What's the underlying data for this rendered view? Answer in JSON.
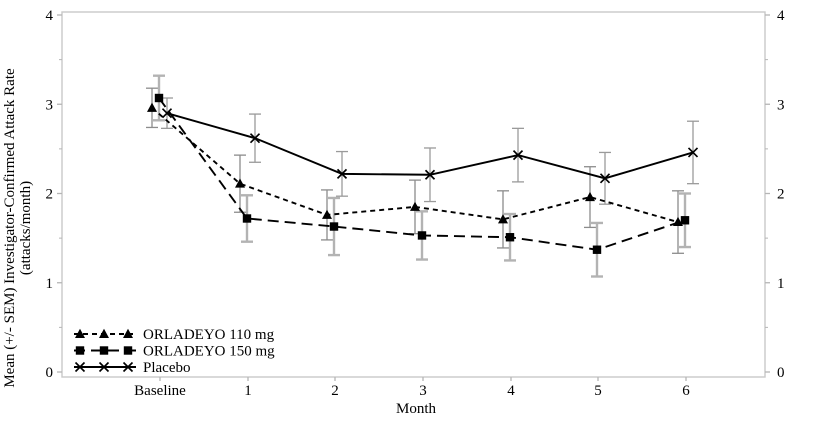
{
  "figure": {
    "background": "#ffffff",
    "frame_color": "#c9c9c9",
    "tick_color": "#b5b5b5",
    "text_color": "#000000"
  },
  "chart_data": {
    "type": "line",
    "title": "",
    "xlabel": "Month",
    "ylabel": "Mean (+/- SEM) Investigator-Confirmed Attack Rate",
    "ylabel_line2": "(attacks/month)",
    "categories": [
      "Baseline",
      "1",
      "2",
      "3",
      "4",
      "5",
      "6"
    ],
    "ylim": [
      0,
      4
    ],
    "yticks": [
      0,
      1,
      2,
      3,
      4
    ],
    "y_minor_step": 0.5,
    "grid": false,
    "legend_position": "bottom-left-inside",
    "series": [
      {
        "name": "ORLADEYO 110 mg",
        "marker": "triangle",
        "line_style": "short-dash",
        "color": "#000000",
        "values": [
          2.96,
          2.11,
          1.76,
          1.85,
          1.71,
          1.96,
          1.68
        ],
        "sem": [
          0.22,
          0.32,
          0.28,
          0.3,
          0.32,
          0.34,
          0.35
        ],
        "x_offset": -8,
        "error_color": "#8c8c8c",
        "error_width": 1.3
      },
      {
        "name": "ORLADEYO 150 mg",
        "marker": "square",
        "line_style": "long-dash",
        "color": "#000000",
        "values": [
          3.07,
          1.72,
          1.63,
          1.53,
          1.51,
          1.37,
          1.7
        ],
        "sem": [
          0.25,
          0.26,
          0.32,
          0.27,
          0.26,
          0.3,
          0.3
        ],
        "x_offset": -1,
        "error_color": "#b3b3b3",
        "error_width": 2.4
      },
      {
        "name": "Placebo",
        "marker": "x",
        "line_style": "solid",
        "color": "#000000",
        "values": [
          2.9,
          2.62,
          2.22,
          2.21,
          2.43,
          2.17,
          2.46
        ],
        "sem": [
          0.17,
          0.27,
          0.25,
          0.3,
          0.3,
          0.29,
          0.35
        ],
        "x_offset": 7,
        "error_color": "#9a9a9a",
        "error_width": 1.3
      }
    ]
  }
}
